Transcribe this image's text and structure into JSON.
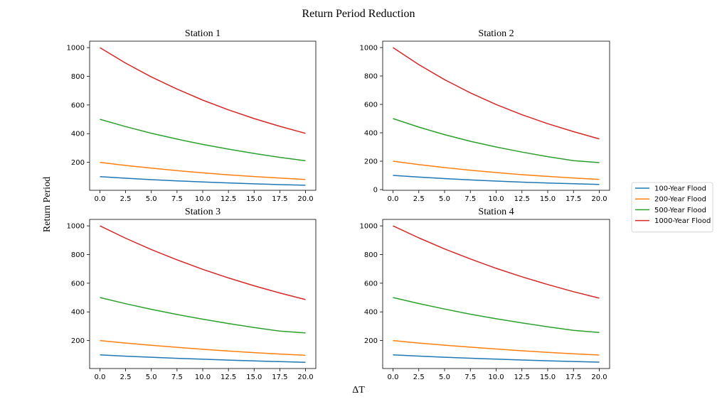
{
  "figure": {
    "title": "Return Period Reduction",
    "xlabel": "ΔT",
    "ylabel": "Return Period"
  },
  "legend": {
    "placement": "right-center",
    "entries": [
      "100-Year Flood",
      "200-Year Flood",
      "500-Year Flood",
      "1000-Year Flood"
    ]
  },
  "colors": {
    "100-Year Flood": "#1f77b4",
    "200-Year Flood": "#ff7f0e",
    "500-Year Flood": "#2ca02c",
    "1000-Year Flood": "#d62728"
  },
  "chart_data": [
    {
      "type": "line",
      "title": "Station 1",
      "x": [
        0,
        2.5,
        5,
        7.5,
        10,
        12.5,
        15,
        17.5,
        20
      ],
      "xticks": [
        "0.0",
        "2.5",
        "5.0",
        "7.5",
        "10.0",
        "12.5",
        "15.0",
        "17.5",
        "20.0"
      ],
      "yticks": [
        "200",
        "400",
        "600",
        "800",
        "1000"
      ],
      "xlim": [
        -1,
        21
      ],
      "ylim": [
        5,
        1045
      ],
      "grid": false,
      "series": [
        {
          "name": "100-Year Flood",
          "values": [
            100,
            89.2,
            79.5,
            70.9,
            63.2,
            56.4,
            50.3,
            44.8,
            40
          ]
        },
        {
          "name": "200-Year Flood",
          "values": [
            200,
            178.5,
            159.3,
            142.1,
            126.8,
            113.2,
            101,
            90.2,
            80.5
          ]
        },
        {
          "name": "500-Year Flood",
          "values": [
            500,
            449,
            403,
            362,
            325,
            292,
            262,
            235,
            211
          ]
        },
        {
          "name": "1000-Year Flood",
          "values": [
            1000,
            892,
            796,
            711,
            634,
            566,
            505,
            451,
            402
          ]
        }
      ]
    },
    {
      "type": "line",
      "title": "Station 2",
      "x": [
        0,
        2.5,
        5,
        7.5,
        10,
        12.5,
        15,
        17.5,
        20
      ],
      "xticks": [
        "0.0",
        "2.5",
        "5.0",
        "7.5",
        "10.0",
        "12.5",
        "15.0",
        "17.5",
        "20.0"
      ],
      "yticks": [
        "0",
        "200",
        "400",
        "600",
        "800",
        "1000"
      ],
      "xlim": [
        -1,
        21
      ],
      "ylim": [
        -5,
        1045
      ],
      "grid": false,
      "series": [
        {
          "name": "100-Year Flood",
          "values": [
            100,
            88,
            77.4,
            68.1,
            59.9,
            52.7,
            46.4,
            40.8,
            35.9
          ]
        },
        {
          "name": "200-Year Flood",
          "values": [
            200,
            176,
            155,
            136,
            120,
            105,
            92.8,
            81.7,
            71.9
          ]
        },
        {
          "name": "500-Year Flood",
          "values": [
            500,
            440,
            387,
            340,
            300,
            264,
            232,
            204,
            190
          ]
        },
        {
          "name": "1000-Year Flood",
          "values": [
            1000,
            880,
            774,
            681,
            599,
            527,
            464,
            408,
            357
          ]
        }
      ]
    },
    {
      "type": "line",
      "title": "Station 3",
      "x": [
        0,
        2.5,
        5,
        7.5,
        10,
        12.5,
        15,
        17.5,
        20
      ],
      "xticks": [
        "0.0",
        "2.5",
        "5.0",
        "7.5",
        "10.0",
        "12.5",
        "15.0",
        "17.5",
        "20.0"
      ],
      "yticks": [
        "200",
        "400",
        "600",
        "800",
        "1000"
      ],
      "xlim": [
        -1,
        21
      ],
      "ylim": [
        5,
        1045
      ],
      "grid": false,
      "series": [
        {
          "name": "100-Year Flood",
          "values": [
            100,
            91.4,
            83.5,
            76.3,
            69.7,
            63.7,
            58.2,
            53.2,
            48.6
          ]
        },
        {
          "name": "200-Year Flood",
          "values": [
            200,
            183,
            167,
            153,
            139,
            127,
            116,
            106,
            97.3
          ]
        },
        {
          "name": "500-Year Flood",
          "values": [
            500,
            457,
            418,
            382,
            349,
            319,
            291,
            266,
            253
          ]
        },
        {
          "name": "1000-Year Flood",
          "values": [
            1000,
            914,
            835,
            763,
            697,
            637,
            582,
            532,
            486
          ]
        }
      ]
    },
    {
      "type": "line",
      "title": "Station 4",
      "x": [
        0,
        2.5,
        5,
        7.5,
        10,
        12.5,
        15,
        17.5,
        20
      ],
      "xticks": [
        "0.0",
        "2.5",
        "5.0",
        "7.5",
        "10.0",
        "12.5",
        "15.0",
        "17.5",
        "20.0"
      ],
      "yticks": [
        "200",
        "400",
        "600",
        "800",
        "1000"
      ],
      "xlim": [
        -1,
        21
      ],
      "ylim": [
        5,
        1045
      ],
      "grid": false,
      "series": [
        {
          "name": "100-Year Flood",
          "values": [
            100,
            91.6,
            83.9,
            76.9,
            70.4,
            64.5,
            59.1,
            54.1,
            49.6
          ]
        },
        {
          "name": "200-Year Flood",
          "values": [
            200,
            183,
            168,
            154,
            141,
            129,
            118,
            108,
            99.2
          ]
        },
        {
          "name": "500-Year Flood",
          "values": [
            500,
            458,
            420,
            384,
            352,
            323,
            296,
            271,
            256
          ]
        },
        {
          "name": "1000-Year Flood",
          "values": [
            1000,
            916,
            839,
            769,
            704,
            645,
            591,
            541,
            496
          ]
        }
      ]
    }
  ]
}
